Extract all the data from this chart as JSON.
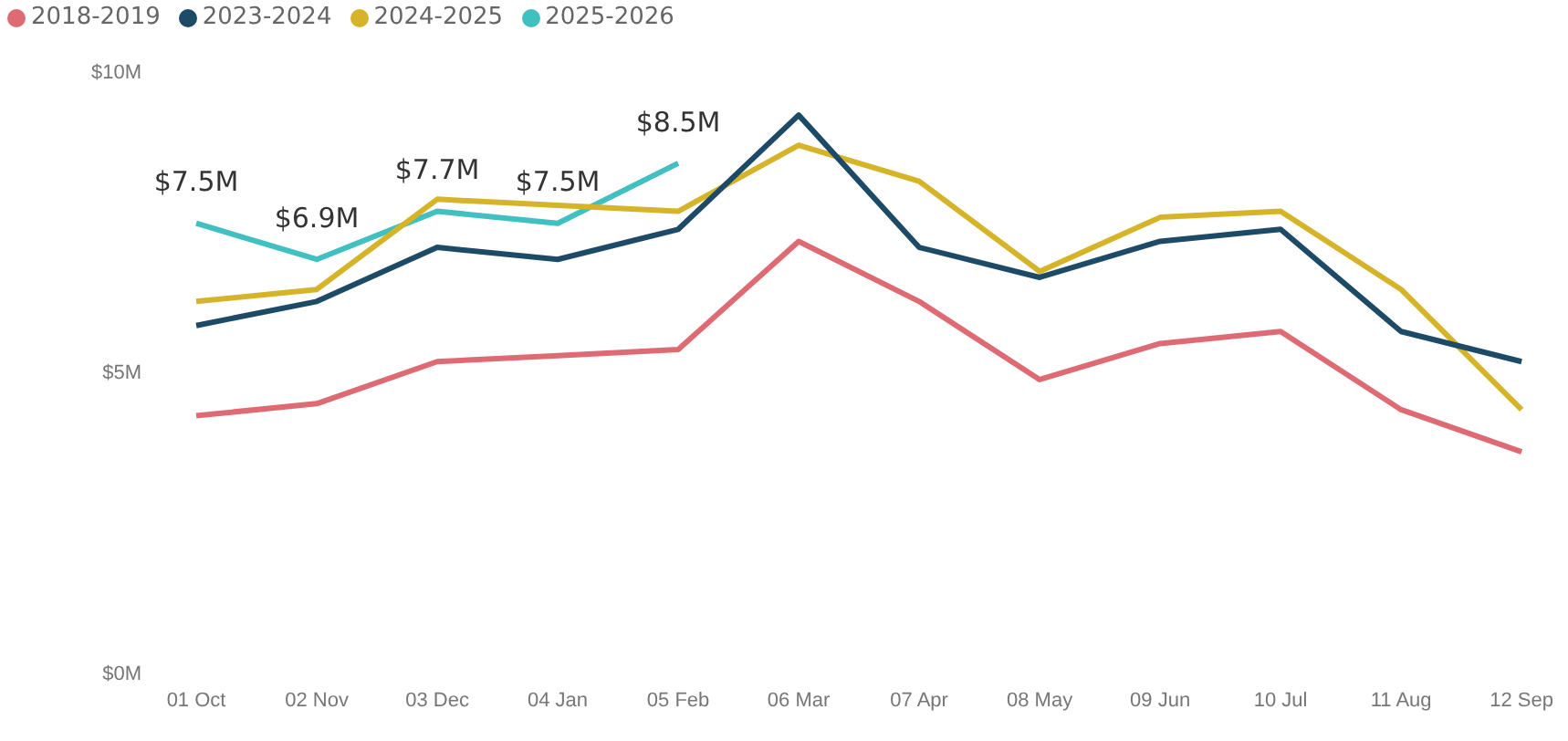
{
  "chart_data": {
    "type": "line",
    "categories": [
      "01 Oct",
      "02 Nov",
      "03 Dec",
      "04 Jan",
      "05 Feb",
      "06 Mar",
      "07 Apr",
      "08 May",
      "09 Jun",
      "10 Jul",
      "11 Aug",
      "12 Sep"
    ],
    "series": [
      {
        "name": "2018-2019",
        "color": "#de6b73",
        "values": [
          4.3,
          4.5,
          5.2,
          5.3,
          5.4,
          7.2,
          6.2,
          4.9,
          5.5,
          5.7,
          4.4,
          3.7
        ]
      },
      {
        "name": "2023-2024",
        "color": "#1d4a66",
        "values": [
          5.8,
          6.2,
          7.1,
          6.9,
          7.4,
          9.3,
          7.1,
          6.6,
          7.2,
          7.4,
          5.7,
          5.2
        ]
      },
      {
        "name": "2024-2025",
        "color": "#d6b42a",
        "values": [
          6.2,
          6.4,
          7.9,
          7.8,
          7.7,
          8.8,
          8.2,
          6.7,
          7.6,
          7.7,
          6.4,
          4.4
        ]
      },
      {
        "name": "2025-2026",
        "color": "#40c0c0",
        "values": [
          7.5,
          6.9,
          7.7,
          7.5,
          8.5,
          null,
          null,
          null,
          null,
          null,
          null,
          null
        ],
        "value_labels": [
          "$7.5M",
          "$6.9M",
          "$7.7M",
          "$7.5M",
          "$8.5M",
          null,
          null,
          null,
          null,
          null,
          null,
          null
        ]
      }
    ],
    "ylim": [
      0,
      10
    ],
    "yticks": [
      {
        "value": 0,
        "label": "$0M"
      },
      {
        "value": 5,
        "label": "$5M"
      },
      {
        "value": 10,
        "label": "$10M"
      }
    ],
    "grid": false,
    "legend": "top left",
    "marker": "none",
    "line_style": "solid"
  }
}
